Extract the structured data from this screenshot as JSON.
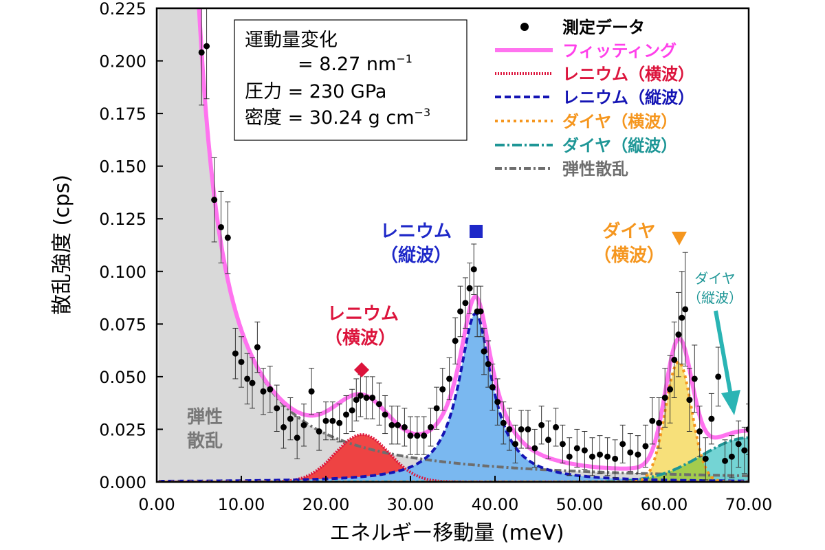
{
  "chart_data": {
    "type": "line",
    "xlabel": "エネルギー移動量 (meV)",
    "ylabel": "散乱強度 (cps)",
    "xlim": [
      0,
      70
    ],
    "ylim": [
      0,
      0.225
    ],
    "xticks": [
      "0.00",
      "10.00",
      "20.00",
      "30.00",
      "40.00",
      "50.00",
      "60.00",
      "70.00"
    ],
    "yticks": [
      "0.000",
      "0.025",
      "0.050",
      "0.075",
      "0.100",
      "0.125",
      "0.150",
      "0.175",
      "0.200",
      "0.225"
    ],
    "grid": false,
    "legend_position": "top-right",
    "info_box": {
      "line1": "運動量変化",
      "line2": "= 8.27 nm",
      "line2_sup": "−1",
      "line3": "圧力 = 230 GPa",
      "line4": "密度 = 30.24 g cm",
      "line4_sup": "−3"
    },
    "legend": {
      "measured": "測定データ",
      "fit": "フィッティング",
      "re_ta": "レニウム（横波）",
      "re_la": "レニウム（縦波）",
      "dia_ta": "ダイヤ（横波）",
      "dia_la": "ダイヤ（縦波）",
      "elastic": "弾性散乱"
    },
    "annotations": {
      "re_ta": [
        "レニウム",
        "（横波）"
      ],
      "re_la": [
        "レニウム",
        "（縦波）"
      ],
      "dia_ta": [
        "ダイヤ",
        "（横波）"
      ],
      "dia_la": [
        "ダイヤ",
        "（縦波）"
      ],
      "elastic": [
        "弾性",
        "散乱"
      ]
    },
    "components": {
      "elastic": {
        "type": "power",
        "amplitude": 3.2,
        "exponent": -1.65
      },
      "re_ta": {
        "type": "gaussian",
        "center": 24.3,
        "height": 0.0225,
        "sigma": 3.2
      },
      "re_la": {
        "type": "lorentzian",
        "center": 37.7,
        "height": 0.08,
        "gamma": 2.4
      },
      "dia_ta": {
        "type": "gaussian",
        "center": 61.7,
        "height": 0.057,
        "sigma": 1.55
      },
      "dia_la": {
        "type": "gaussian",
        "center": 70.0,
        "height": 0.021,
        "sigma": 5.5
      }
    },
    "measured": {
      "x": [
        5.3,
        5.9,
        6.8,
        7.6,
        8.4,
        9.3,
        10.0,
        10.7,
        11.3,
        11.9,
        12.6,
        13.4,
        14.2,
        15.0,
        15.8,
        16.6,
        17.4,
        18.3,
        19.2,
        20.0,
        20.8,
        21.6,
        22.4,
        23.1,
        23.6,
        24.1,
        24.8,
        25.5,
        26.3,
        27.0,
        27.8,
        28.5,
        29.3,
        30.0,
        30.8,
        31.6,
        32.4,
        33.1,
        33.8,
        34.6,
        35.3,
        35.9,
        36.5,
        37.0,
        37.5,
        37.9,
        38.3,
        38.7,
        39.2,
        39.7,
        40.3,
        41.0,
        41.7,
        42.4,
        43.1,
        43.9,
        44.7,
        45.5,
        46.3,
        47.2,
        48.0,
        48.8,
        49.7,
        50.6,
        51.5,
        52.4,
        53.3,
        54.2,
        55.1,
        56.0,
        56.9,
        57.8,
        58.6,
        59.4,
        60.1,
        60.7,
        61.2,
        61.7,
        62.1,
        62.5,
        63.0,
        63.6,
        64.2,
        64.9,
        65.6,
        66.4,
        67.2,
        68.0,
        68.8,
        69.5,
        70.0
      ],
      "y": [
        0.204,
        0.207,
        0.134,
        0.121,
        0.116,
        0.061,
        0.057,
        0.049,
        0.047,
        0.064,
        0.043,
        0.044,
        0.035,
        0.026,
        0.03,
        0.021,
        0.027,
        0.043,
        0.024,
        0.029,
        0.029,
        0.028,
        0.032,
        0.034,
        0.039,
        0.041,
        0.04,
        0.04,
        0.037,
        0.032,
        0.027,
        0.027,
        0.026,
        0.022,
        0.022,
        0.022,
        0.026,
        0.035,
        0.044,
        0.049,
        0.067,
        0.081,
        0.085,
        0.092,
        0.101,
        0.081,
        0.081,
        0.062,
        0.056,
        0.045,
        0.038,
        0.028,
        0.025,
        0.018,
        0.025,
        0.025,
        0.016,
        0.027,
        0.02,
        0.026,
        0.018,
        0.012,
        0.016,
        0.015,
        0.012,
        0.013,
        0.012,
        0.011,
        0.018,
        0.014,
        0.013,
        0.017,
        0.029,
        0.028,
        0.04,
        0.044,
        0.058,
        0.07,
        0.078,
        0.082,
        0.039,
        0.049,
        0.024,
        0.011,
        0.03,
        0.05,
        0.01,
        0.012,
        0.018,
        0.015,
        0.025
      ],
      "err": [
        0.025,
        0.025,
        0.02,
        0.017,
        0.017,
        0.012,
        0.012,
        0.012,
        0.012,
        0.012,
        0.011,
        0.011,
        0.011,
        0.01,
        0.01,
        0.01,
        0.01,
        0.011,
        0.009,
        0.009,
        0.009,
        0.009,
        0.009,
        0.01,
        0.01,
        0.01,
        0.01,
        0.01,
        0.01,
        0.009,
        0.009,
        0.009,
        0.009,
        0.009,
        0.009,
        0.009,
        0.009,
        0.01,
        0.01,
        0.01,
        0.011,
        0.012,
        0.012,
        0.012,
        0.012,
        0.012,
        0.012,
        0.011,
        0.011,
        0.011,
        0.011,
        0.01,
        0.01,
        0.009,
        0.009,
        0.009,
        0.009,
        0.009,
        0.009,
        0.009,
        0.009,
        0.009,
        0.009,
        0.009,
        0.009,
        0.009,
        0.009,
        0.009,
        0.009,
        0.009,
        0.009,
        0.01,
        0.011,
        0.012,
        0.014,
        0.016,
        0.018,
        0.02,
        0.022,
        0.027,
        0.015,
        0.016,
        0.012,
        0.01,
        0.012,
        0.014,
        0.01,
        0.01,
        0.011,
        0.011,
        0.012
      ]
    },
    "colors": {
      "fit": "#ff73ef",
      "re_ta": "#dc143c",
      "re_ta_fill": "#f03232",
      "re_la": "#1414b4",
      "re_la_fill": "#7ab8f0",
      "dia_ta": "#f5961e",
      "dia_ta_fill": "#f7e07a",
      "dia_la": "#1e9696",
      "dia_la_fill": "#5ccdcd",
      "elastic": "#6e6e6e",
      "elastic_fill": "#d9d9d9",
      "annot_red": "#dc143c",
      "annot_blue": "#1e28c8",
      "annot_orange": "#f5961e",
      "annot_teal": "#1e9696",
      "annot_gray": "#787878",
      "overlap_fill": "#a3cc4d"
    }
  }
}
